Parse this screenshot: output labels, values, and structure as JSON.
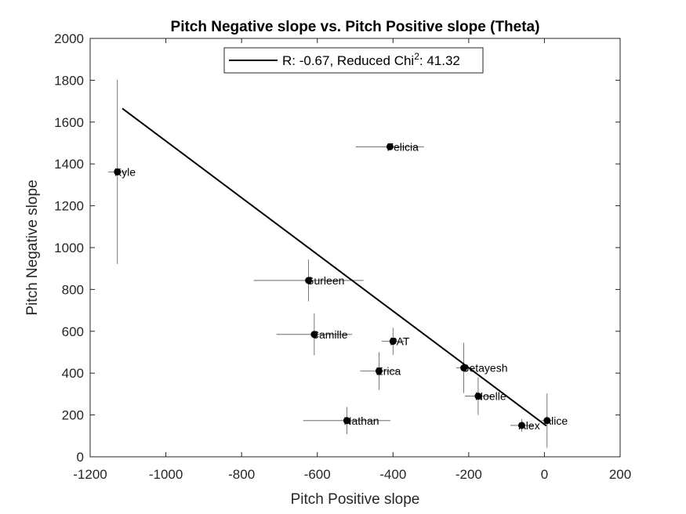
{
  "chart_data": {
    "type": "scatter",
    "title": "Pitch Negative slope vs. Pitch Positive slope (Theta)",
    "xlabel": "Pitch Positive slope",
    "ylabel": "Pitch Negative slope",
    "xlim": [
      -1200,
      200
    ],
    "ylim": [
      0,
      2000
    ],
    "xticks": [
      "-1200",
      "-1000",
      "-800",
      "-600",
      "-400",
      "-200",
      "0",
      "200"
    ],
    "yticks": [
      "0",
      "200",
      "400",
      "600",
      "800",
      "1000",
      "1200",
      "1400",
      "1600",
      "1800",
      "2000"
    ],
    "grid": false,
    "legend": {
      "location": "top",
      "prefix": "R: -0.67, Reduced Chi",
      "superscript": "2",
      "suffix": ": 41.32"
    },
    "fit_line": {
      "x": [
        -1115,
        5
      ],
      "y": [
        1665,
        148
      ]
    },
    "points": [
      {
        "label": "Kyle",
        "x": -1128,
        "y": 1362,
        "xerr": 25,
        "yerr": 440
      },
      {
        "label": "Felicia",
        "x": -408,
        "y": 1482,
        "xerr": 90,
        "yerr": 0
      },
      {
        "label": "Gurleen",
        "x": -623,
        "y": 843,
        "xerr": 145,
        "yerr": 100
      },
      {
        "label": "Camille",
        "x": -608,
        "y": 585,
        "xerr": 100,
        "yerr": 100
      },
      {
        "label": "PAT",
        "x": -400,
        "y": 552,
        "xerr": 30,
        "yerr": 65
      },
      {
        "label": "Erica",
        "x": -437,
        "y": 410,
        "xerr": 50,
        "yerr": 90
      },
      {
        "label": "Nathan",
        "x": -522,
        "y": 173,
        "xerr": 115,
        "yerr": 65
      },
      {
        "label": "Getayesh",
        "x": -213,
        "y": 425,
        "xerr": 20,
        "yerr": 120
      },
      {
        "label": "Noelle",
        "x": -175,
        "y": 290,
        "xerr": 35,
        "yerr": 90
      },
      {
        "label": "Alex",
        "x": -60,
        "y": 150,
        "xerr": 30,
        "yerr": 30
      },
      {
        "label": "Alice",
        "x": 7,
        "y": 173,
        "xerr": 15,
        "yerr": 130
      }
    ]
  }
}
